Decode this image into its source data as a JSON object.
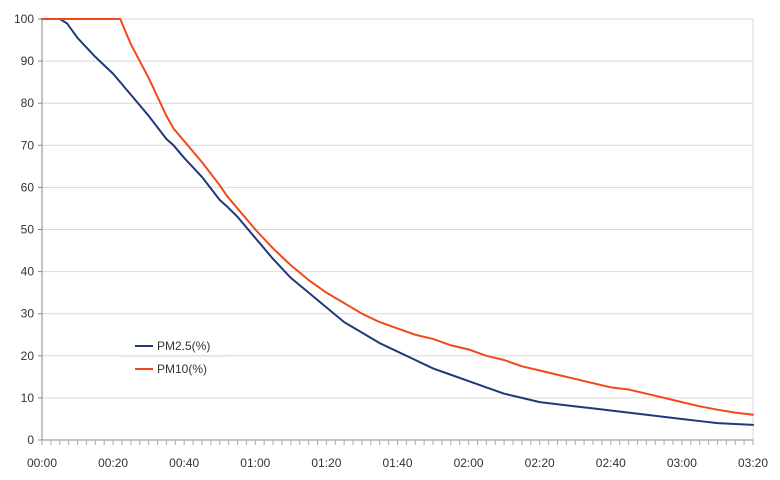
{
  "chart_data": {
    "type": "line",
    "title": "",
    "xlabel": "",
    "ylabel": "",
    "ylim": [
      0,
      100
    ],
    "xlim_minutes": [
      0,
      200
    ],
    "grid": "horizontal",
    "legend_placement": "left-middle",
    "x_ticks": [
      {
        "minutes": 0,
        "label": "00:00"
      },
      {
        "minutes": 20,
        "label": "00:20"
      },
      {
        "minutes": 40,
        "label": "00:40"
      },
      {
        "minutes": 60,
        "label": "01:00"
      },
      {
        "minutes": 80,
        "label": "01:20"
      },
      {
        "minutes": 100,
        "label": "01:40"
      },
      {
        "minutes": 120,
        "label": "02:00"
      },
      {
        "minutes": 140,
        "label": "02:20"
      },
      {
        "minutes": 160,
        "label": "02:40"
      },
      {
        "minutes": 180,
        "label": "03:00"
      },
      {
        "minutes": 200,
        "label": "03:20"
      }
    ],
    "y_ticks": [
      {
        "value": 0,
        "label": "0"
      },
      {
        "value": 10,
        "label": "10"
      },
      {
        "value": 20,
        "label": "20"
      },
      {
        "value": 30,
        "label": "30"
      },
      {
        "value": 40,
        "label": "40"
      },
      {
        "value": 50,
        "label": "50"
      },
      {
        "value": 60,
        "label": "60"
      },
      {
        "value": 70,
        "label": "70"
      },
      {
        "value": 80,
        "label": "80"
      },
      {
        "value": 90,
        "label": "90"
      },
      {
        "value": 100,
        "label": "100"
      }
    ],
    "series": [
      {
        "name": "PM2.5(%)",
        "color": "#1f3a7a",
        "x_minutes": [
          0,
          5,
          7,
          10,
          15,
          20,
          22,
          25,
          30,
          35,
          37,
          40,
          45,
          50,
          52,
          55,
          60,
          65,
          70,
          75,
          80,
          85,
          90,
          95,
          100,
          105,
          110,
          115,
          120,
          125,
          130,
          135,
          140,
          145,
          150,
          155,
          160,
          165,
          170,
          175,
          180,
          185,
          190,
          195,
          200
        ],
        "values": [
          100,
          100,
          99,
          95.5,
          91,
          87,
          85,
          82,
          77,
          71.5,
          70,
          67,
          62.5,
          57,
          55.5,
          53,
          48,
          43,
          38.5,
          35,
          31.5,
          28,
          25.5,
          23,
          21,
          19,
          17,
          15.5,
          14,
          12.5,
          11,
          10,
          9,
          8.5,
          8,
          7.5,
          7,
          6.5,
          6,
          5.5,
          5,
          4.5,
          4,
          3.8,
          3.6
        ]
      },
      {
        "name": "PM10(%)",
        "color": "#f04a1a",
        "x_minutes": [
          0,
          10,
          20,
          22,
          25,
          30,
          35,
          37,
          40,
          45,
          50,
          52,
          55,
          60,
          65,
          70,
          75,
          80,
          85,
          90,
          95,
          100,
          105,
          110,
          115,
          120,
          125,
          130,
          135,
          140,
          145,
          150,
          155,
          160,
          165,
          170,
          175,
          180,
          185,
          190,
          195,
          200
        ],
        "values": [
          100,
          100,
          100,
          100,
          94,
          86,
          77,
          74,
          71,
          66,
          60.5,
          58,
          55,
          50,
          45.5,
          41.5,
          38,
          35,
          32.5,
          30,
          28,
          26.5,
          25,
          24,
          22.5,
          21.5,
          20,
          19,
          17.5,
          16.5,
          15.5,
          14.5,
          13.5,
          12.5,
          12,
          11,
          10,
          9,
          8,
          7.2,
          6.5,
          6
        ]
      }
    ]
  }
}
